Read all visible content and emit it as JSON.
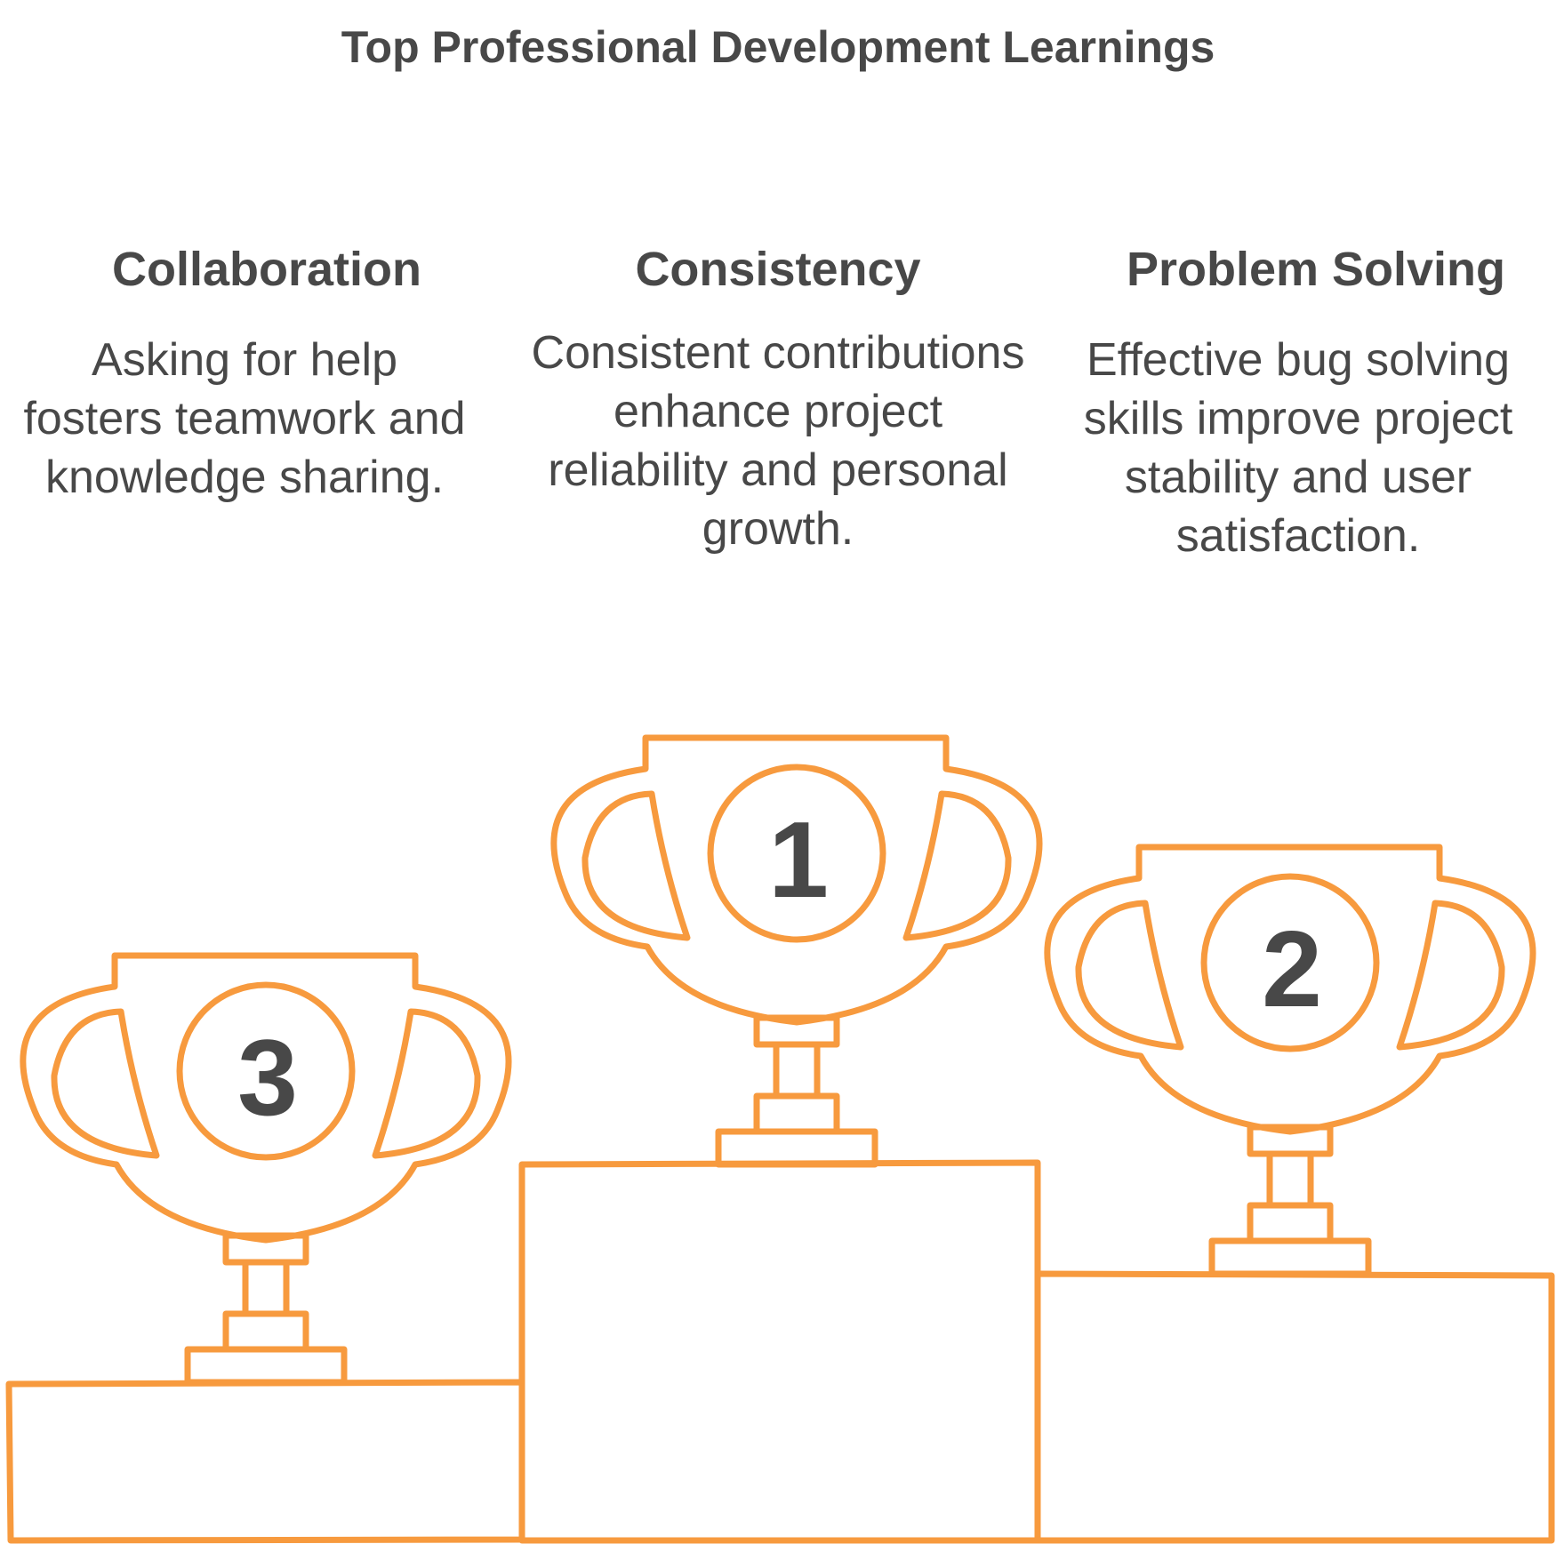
{
  "title": "Top Professional Development Learnings",
  "accent_color": "#F79A3E",
  "text_color": "#484848",
  "items": [
    {
      "rank": "3",
      "heading": "Collaboration",
      "description": "Asking for help fosters teamwork and knowledge sharing."
    },
    {
      "rank": "1",
      "heading": "Consistency",
      "description": "Consistent contributions enhance project reliability and personal growth."
    },
    {
      "rank": "2",
      "heading": "Problem Solving",
      "description": "Effective bug solving skills improve project stability and user satisfaction."
    }
  ]
}
